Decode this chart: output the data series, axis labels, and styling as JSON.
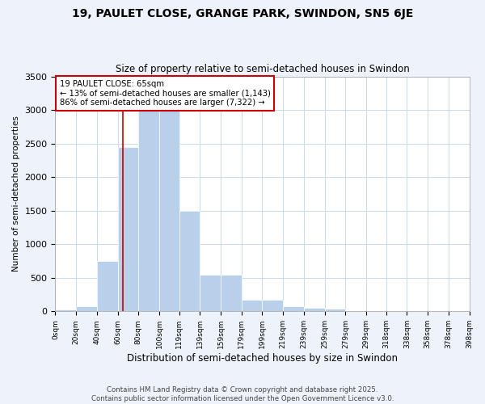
{
  "title": "19, PAULET CLOSE, GRANGE PARK, SWINDON, SN5 6JE",
  "subtitle": "Size of property relative to semi-detached houses in Swindon",
  "xlabel": "Distribution of semi-detached houses by size in Swindon",
  "ylabel": "Number of semi-detached properties",
  "footer_line1": "Contains HM Land Registry data © Crown copyright and database right 2025.",
  "footer_line2": "Contains public sector information licensed under the Open Government Licence v3.0.",
  "annotation_title": "19 PAULET CLOSE: 65sqm",
  "annotation_line1": "← 13% of semi-detached houses are smaller (1,143)",
  "annotation_line2": "86% of semi-detached houses are larger (7,322) →",
  "property_size": 65,
  "bar_color": "#b8d0ea",
  "vline_color": "#cc0000",
  "annotation_box_color": "#cc0000",
  "bin_labels": [
    "0sqm",
    "20sqm",
    "40sqm",
    "60sqm",
    "80sqm",
    "100sqm",
    "119sqm",
    "139sqm",
    "159sqm",
    "179sqm",
    "199sqm",
    "219sqm",
    "239sqm",
    "259sqm",
    "279sqm",
    "299sqm",
    "318sqm",
    "338sqm",
    "358sqm",
    "378sqm",
    "398sqm"
  ],
  "bin_edges": [
    0,
    20,
    40,
    60,
    80,
    100,
    119,
    139,
    159,
    179,
    199,
    219,
    239,
    259,
    279,
    299,
    318,
    338,
    358,
    378,
    398
  ],
  "bar_heights": [
    30,
    80,
    750,
    2450,
    3380,
    3380,
    1500,
    550,
    550,
    175,
    175,
    80,
    50,
    35,
    10,
    5,
    5,
    3,
    3,
    3
  ],
  "ylim": [
    0,
    3500
  ],
  "yticks": [
    0,
    500,
    1000,
    1500,
    2000,
    2500,
    3000,
    3500
  ],
  "background_color": "#eef2fb",
  "plot_background": "#ffffff",
  "grid_color": "#c8d8ee"
}
